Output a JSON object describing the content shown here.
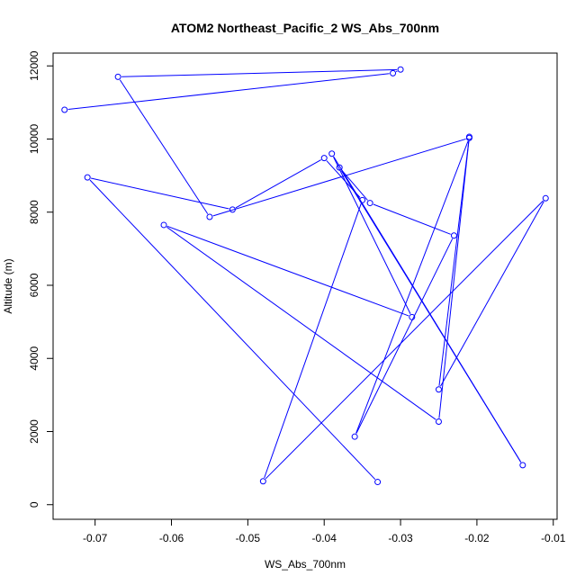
{
  "chart_data": {
    "type": "line",
    "title": "ATOM2 Northeast_Pacific_2 WS_Abs_700nm",
    "xlabel": "WS_Abs_700nm",
    "ylabel": "Altitude (m)",
    "xlim": [
      -0.0755,
      -0.0095
    ],
    "ylim": [
      -400,
      12350
    ],
    "x_ticks": [
      -0.07,
      -0.06,
      -0.05,
      -0.04,
      -0.03,
      -0.02,
      -0.01
    ],
    "x_tick_labels": [
      "-0.07",
      "-0.06",
      "-0.05",
      "-0.04",
      "-0.03",
      "-0.02",
      "-0.01"
    ],
    "y_ticks": [
      0,
      2000,
      4000,
      6000,
      8000,
      10000,
      12000
    ],
    "y_tick_labels": [
      "0",
      "2000",
      "4000",
      "6000",
      "8000",
      "10000",
      "12000"
    ],
    "series_color": "#0000ff",
    "points": [
      [
        -0.033,
        620
      ],
      [
        -0.071,
        8950
      ],
      [
        -0.052,
        8070
      ],
      [
        -0.04,
        9480
      ],
      [
        -0.035,
        8330
      ],
      [
        -0.048,
        640
      ],
      [
        -0.011,
        8380
      ],
      [
        -0.025,
        3150
      ],
      [
        -0.021,
        10060
      ],
      [
        -0.025,
        2270
      ],
      [
        -0.061,
        7650
      ],
      [
        -0.0285,
        5130
      ],
      [
        -0.039,
        9600
      ],
      [
        -0.014,
        1080
      ],
      [
        -0.038,
        9220
      ],
      [
        -0.034,
        8250
      ],
      [
        -0.023,
        7360
      ],
      [
        -0.036,
        1860
      ],
      [
        -0.021,
        10030
      ],
      [
        -0.055,
        7870
      ],
      [
        -0.067,
        11700
      ],
      [
        -0.03,
        11900
      ],
      [
        -0.031,
        11800
      ],
      [
        -0.074,
        10800
      ]
    ]
  }
}
